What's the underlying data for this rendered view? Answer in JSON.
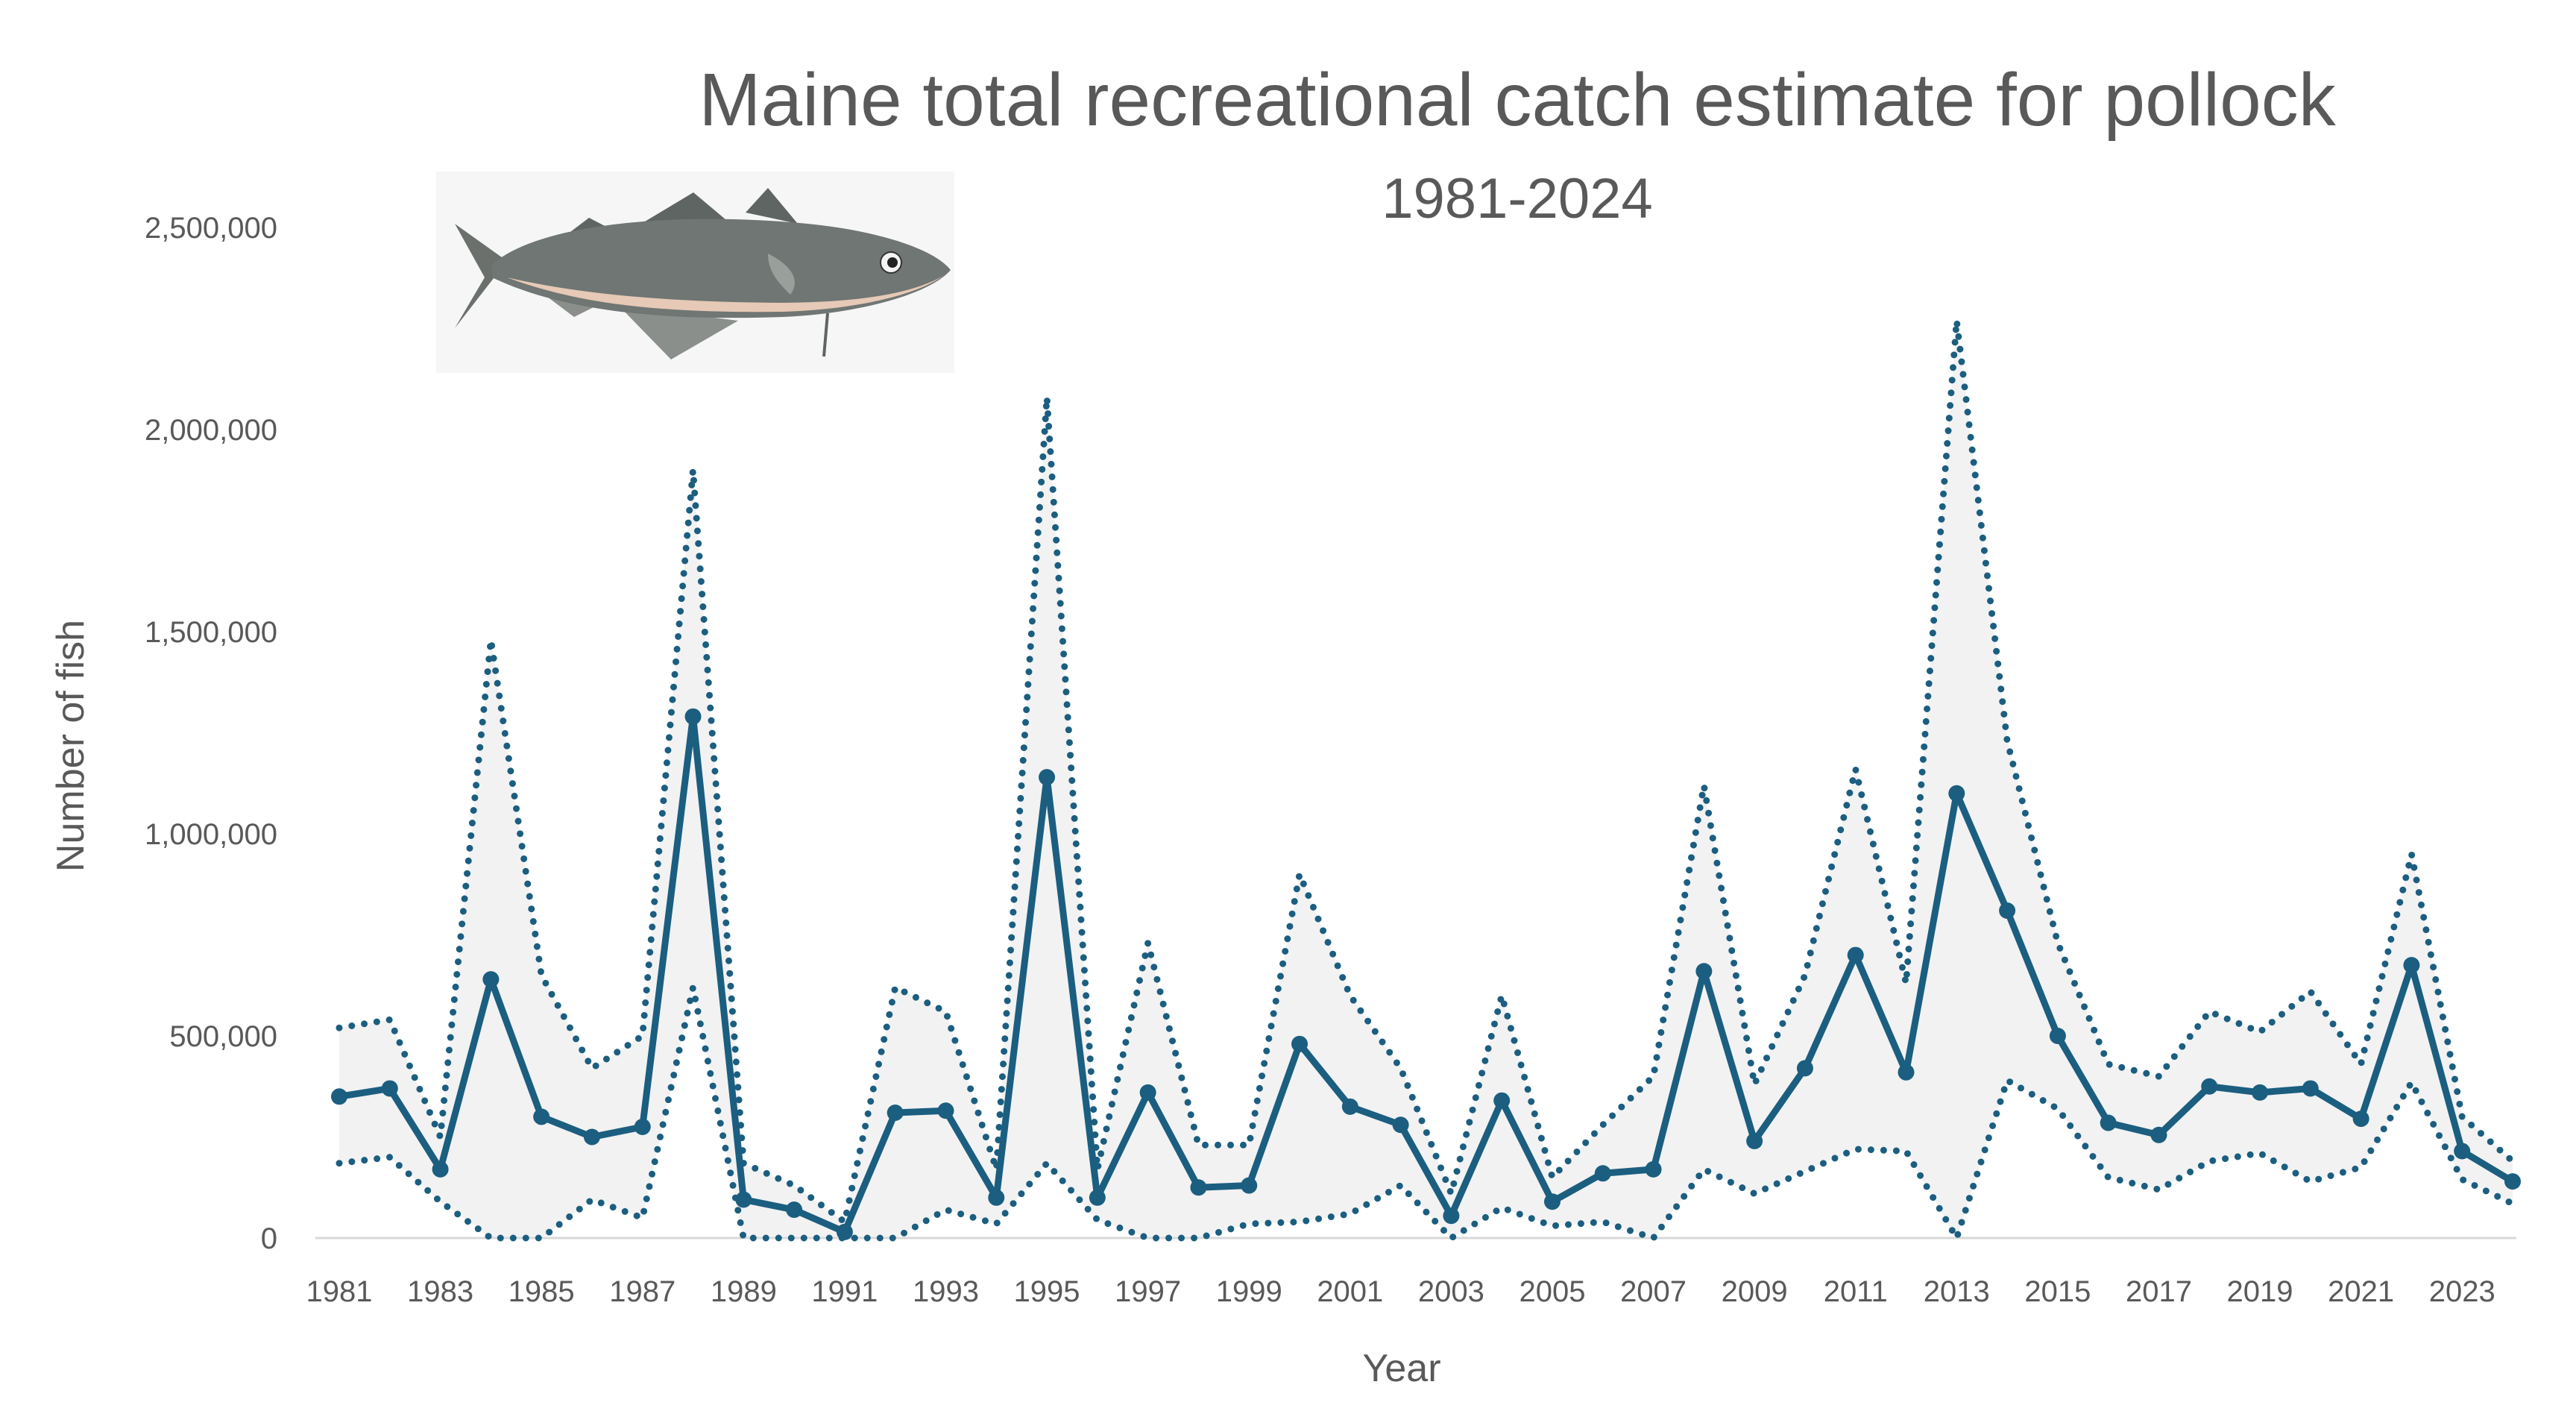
{
  "chart_data": {
    "type": "line",
    "title": "Maine total recreational catch estimate for pollock",
    "subtitle": "1981-2024",
    "xlabel": "Year",
    "ylabel": "Number of fish",
    "ylim": [
      0,
      2500000
    ],
    "yticks": [
      0,
      500000,
      1000000,
      1500000,
      2000000,
      2500000
    ],
    "ytick_labels": [
      "0",
      "500,000",
      "1,000,000",
      "1,500,000",
      "2,000,000",
      "2,500,000"
    ],
    "xtick_labels": [
      "1981",
      "1983",
      "1985",
      "1987",
      "1989",
      "1991",
      "1993",
      "1995",
      "1997",
      "1999",
      "2001",
      "2003",
      "2005",
      "2007",
      "2009",
      "2011",
      "2013",
      "2015",
      "2017",
      "2019",
      "2021",
      "2023"
    ],
    "grid": false,
    "legend": "none",
    "colors": {
      "line": "#1b5e80",
      "band": "#f2f2f2",
      "axis": "#d9d9d9",
      "text": "#595959"
    },
    "image": {
      "icon": "pollock-fish-illustration"
    },
    "x": [
      1981,
      1982,
      1983,
      1984,
      1985,
      1986,
      1987,
      1988,
      1989,
      1990,
      1991,
      1992,
      1993,
      1994,
      1995,
      1996,
      1997,
      1998,
      1999,
      2000,
      2001,
      2002,
      2003,
      2004,
      2005,
      2006,
      2007,
      2008,
      2009,
      2010,
      2011,
      2012,
      2013,
      2014,
      2015,
      2016,
      2017,
      2018,
      2019,
      2020,
      2021,
      2022,
      2023,
      2024
    ],
    "series": [
      {
        "role": "estimate",
        "style": "solid-with-markers",
        "values": [
          350000,
          370000,
          170000,
          640000,
          300000,
          250000,
          275000,
          1290000,
          95000,
          70000,
          15000,
          310000,
          315000,
          100000,
          1140000,
          100000,
          360000,
          125000,
          130000,
          480000,
          325000,
          280000,
          55000,
          340000,
          90000,
          160000,
          170000,
          660000,
          240000,
          420000,
          700000,
          410000,
          1100000,
          810000,
          500000,
          285000,
          255000,
          375000,
          360000,
          370000,
          295000,
          675000,
          215000,
          140000
        ]
      },
      {
        "role": "upper-bound",
        "style": "dotted",
        "values": [
          520000,
          540000,
          250000,
          1480000,
          650000,
          420000,
          500000,
          1900000,
          185000,
          130000,
          40000,
          620000,
          560000,
          170000,
          2080000,
          170000,
          730000,
          230000,
          230000,
          900000,
          600000,
          420000,
          110000,
          600000,
          150000,
          280000,
          400000,
          1120000,
          380000,
          650000,
          1160000,
          630000,
          2270000,
          1230000,
          730000,
          430000,
          400000,
          560000,
          510000,
          610000,
          430000,
          950000,
          300000,
          190000
        ]
      },
      {
        "role": "lower-bound",
        "style": "dotted",
        "values": [
          185000,
          200000,
          90000,
          0,
          0,
          95000,
          50000,
          620000,
          0,
          0,
          0,
          0,
          70000,
          35000,
          185000,
          45000,
          0,
          0,
          35000,
          40000,
          60000,
          130000,
          0,
          75000,
          30000,
          40000,
          0,
          170000,
          110000,
          165000,
          220000,
          215000,
          0,
          390000,
          320000,
          150000,
          120000,
          190000,
          210000,
          140000,
          175000,
          385000,
          145000,
          85000
        ]
      }
    ]
  }
}
